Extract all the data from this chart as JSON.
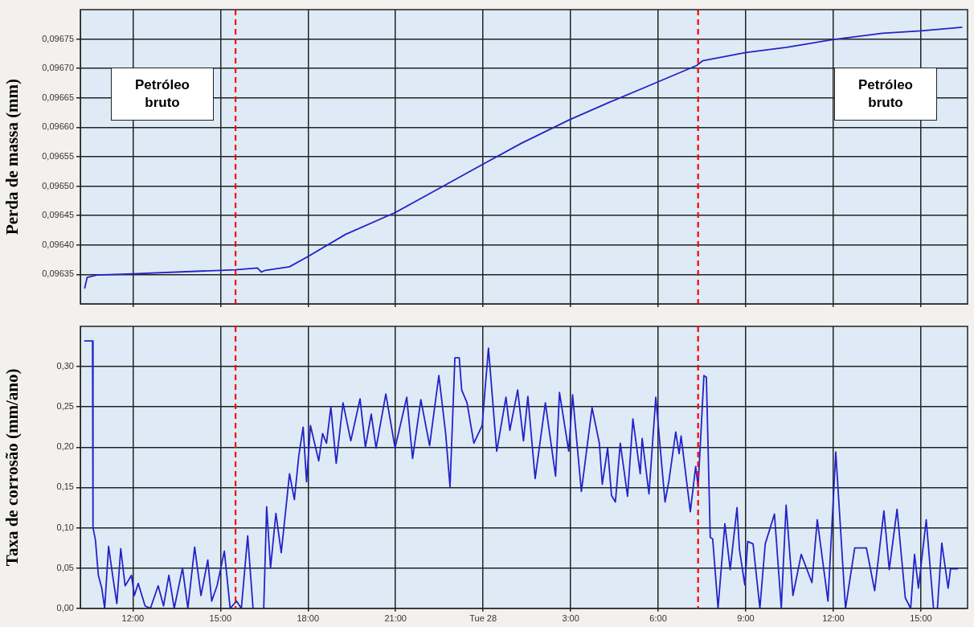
{
  "chart_data": [
    {
      "type": "line",
      "ylabel": "Perda de massa (mm)",
      "series": [
        {
          "color": "#2323c8",
          "x": [
            "--02-27T10:21",
            "--02-27T10:26",
            "--02-27T10:46",
            "--02-27T12:00",
            "--02-27T15:00",
            "--02-27T15:31",
            "--02-27T16:16",
            "--02-27T16:24",
            "--02-27T16:32",
            "--02-27T17:22",
            "--02-27T18:01",
            "--02-27T19:17",
            "--02-27T20:59",
            "--02-27T22:18",
            "--02-27T23:59",
            "--02-28T01:19",
            "--02-28T02:58",
            "--02-28T04:21",
            "--02-28T05:56",
            "--02-28T07:19",
            "--02-28T07:31",
            "--02-28T09:00",
            "--02-28T10:24",
            "--02-28T11:58",
            "--02-28T13:41",
            "--02-28T15:00",
            "--02-28T16:12",
            "--02-28T16:24"
          ],
          "values": [
            0.096327,
            0.096345,
            0.096349,
            0.096351,
            0.096357,
            0.096358,
            0.096361,
            0.096354,
            0.096357,
            0.096363,
            0.096381,
            0.096418,
            0.096455,
            0.096491,
            0.096537,
            0.096573,
            0.096613,
            0.096643,
            0.096676,
            0.096705,
            0.096713,
            0.096727,
            0.096736,
            0.096749,
            0.09676,
            0.096764,
            0.096769,
            0.09677
          ]
        }
      ],
      "xlim": [
        "--02-27T10:12",
        "--02-28T16:36"
      ],
      "xticks": [
        {
          "value": "--02-27T12:00",
          "label": null
        },
        {
          "value": "--02-27T15:00",
          "label": null
        },
        {
          "value": "--02-27T18:00",
          "label": null
        },
        {
          "value": "--02-27T21:00",
          "label": null
        },
        {
          "value": "--02-28T00:00",
          "label": null
        },
        {
          "value": "--02-28T03:00",
          "label": null
        },
        {
          "value": "--02-28T06:00",
          "label": null
        },
        {
          "value": "--02-28T09:00",
          "label": null
        },
        {
          "value": "--02-28T12:00",
          "label": null
        },
        {
          "value": "--02-28T15:00",
          "label": null
        }
      ],
      "ylim": [
        0.0963,
        0.0968
      ],
      "yticks": [
        {
          "value": 0.09635,
          "label": "0,09635"
        },
        {
          "value": 0.0964,
          "label": "0,09640"
        },
        {
          "value": 0.09645,
          "label": "0,09645"
        },
        {
          "value": 0.0965,
          "label": "0,09650"
        },
        {
          "value": 0.09655,
          "label": "0,09655"
        },
        {
          "value": 0.0966,
          "label": "0,09660"
        },
        {
          "value": 0.09665,
          "label": "0,09665"
        },
        {
          "value": 0.0967,
          "label": "0,09670"
        },
        {
          "value": 0.09675,
          "label": "0,09675"
        }
      ],
      "tick_labels": "y",
      "grid": true,
      "line_style": "solid",
      "ref_lines": [
        {
          "axis": "x",
          "value": "--02-27T15:31",
          "color": "#ff0000",
          "line_style": "dashed"
        },
        {
          "axis": "x",
          "value": "--02-28T07:22",
          "color": "#ff0000",
          "line_style": "dashed"
        }
      ],
      "annotations": [
        "Petróleo bruto",
        "Petróleo bruto"
      ]
    },
    {
      "type": "line",
      "ylabel": "Taxa de corrosão (mm/ano)",
      "series": [
        {
          "color": "#2323c8",
          "x": [
            "--02-27T10:21",
            "--02-27T10:37",
            "--02-27T10:38",
            "--02-27T10:43",
            "--02-27T10:49",
            "--02-27T10:56",
            "--02-27T11:02",
            "--02-27T11:10",
            "--02-27T11:19",
            "--02-27T11:27",
            "--02-27T11:35",
            "--02-27T11:44",
            "--02-27T11:57",
            "--02-27T12:03",
            "--02-27T12:11",
            "--02-27T12:25",
            "--02-27T12:36",
            "--02-27T12:52",
            "--02-27T13:03",
            "--02-27T13:14",
            "--02-27T13:25",
            "--02-27T13:42",
            "--02-27T13:53",
            "--02-27T14:07",
            "--02-27T14:20",
            "--02-27T14:34",
            "--02-27T14:42",
            "--02-27T14:53",
            "--02-27T15:08",
            "--02-27T15:20",
            "--02-27T15:33",
            "--02-27T15:43",
            "--02-27T15:56",
            "--02-27T16:07",
            "--02-27T16:29",
            "--02-27T16:35",
            "--02-27T16:43",
            "--02-27T16:54",
            "--02-27T17:05",
            "--02-27T17:22",
            "--02-27T17:32",
            "--02-27T17:41",
            "--02-27T17:50",
            "--02-27T17:57",
            "--02-27T18:05",
            "--02-27T18:22",
            "--02-27T18:30",
            "--02-27T18:38",
            "--02-27T18:47",
            "--02-27T18:58",
            "--02-27T19:12",
            "--02-27T19:28",
            "--02-27T19:47",
            "--02-27T19:58",
            "--02-27T20:10",
            "--02-27T20:20",
            "--02-27T20:40",
            "--02-27T20:59",
            "--02-27T21:23",
            "--02-27T21:35",
            "--02-27T21:52",
            "--02-27T22:10",
            "--02-27T22:29",
            "--02-27T22:43",
            "--02-27T22:52",
            "--02-27T23:02",
            "--02-27T23:11",
            "--02-27T23:16",
            "--02-27T23:27",
            "--02-27T23:41",
            "--02-27T23:58",
            "--02-28T00:11",
            "--02-28T00:28",
            "--02-28T00:47",
            "--02-28T00:55",
            "--02-28T01:11",
            "--02-28T01:23",
            "--02-28T01:32",
            "--02-28T01:47",
            "--02-28T02:08",
            "--02-28T02:29",
            "--02-28T02:37",
            "--02-28T02:56",
            "--02-28T03:04",
            "--02-28T03:22",
            "--02-28T03:44",
            "--02-28T03:59",
            "--02-28T04:05",
            "--02-28T04:16",
            "--02-28T04:24",
            "--02-28T04:32",
            "--02-28T04:42",
            "--02-28T04:57",
            "--02-28T05:08",
            "--02-28T05:23",
            "--02-28T05:27",
            "--02-28T05:41",
            "--02-28T05:55",
            "--02-28T06:14",
            "--02-28T06:22",
            "--02-28T06:36",
            "--02-28T06:43",
            "--02-28T06:47",
            "--02-28T07:06",
            "--02-28T07:17",
            "--02-28T07:22",
            "--02-28T07:34",
            "--02-28T07:39",
            "--02-28T07:47",
            "--02-28T07:52",
            "--02-28T08:03",
            "--02-28T08:17",
            "--02-28T08:28",
            "--02-28T08:42",
            "--02-28T08:47",
            "--02-28T08:58",
            "--02-28T09:04",
            "--02-28T09:15",
            "--02-28T09:29",
            "--02-28T09:40",
            "--02-28T09:59",
            "--02-28T10:13",
            "--02-28T10:23",
            "--02-28T10:37",
            "--02-28T10:54",
            "--02-28T11:16",
            "--02-28T11:27",
            "--02-28T11:49",
            "--02-28T12:05",
            "--02-28T12:25",
            "--02-28T12:44",
            "--02-28T13:08",
            "--02-28T13:25",
            "--02-28T13:44",
            "--02-28T13:55",
            "--02-28T14:11",
            "--02-28T14:28",
            "--02-28T14:39",
            "--02-28T14:47",
            "--02-28T14:55",
            "--02-28T15:11",
            "--02-28T15:26",
            "--02-28T15:34",
            "--02-28T15:43",
            "--02-28T15:56",
            "--02-28T16:01",
            "--02-28T16:15"
          ],
          "values": [
            0.332,
            0.332,
            0.1,
            0.085,
            0.041,
            0.025,
            0,
            0.077,
            0.038,
            0.006,
            0.074,
            0.028,
            0.041,
            0.016,
            0.031,
            0.003,
            0,
            0.028,
            0.003,
            0.041,
            0,
            0.05,
            0,
            0.076,
            0.016,
            0.06,
            0.009,
            0.028,
            0.071,
            0,
            0.009,
            0,
            0.09,
            0,
            0,
            0.126,
            0.05,
            0.118,
            0.069,
            0.167,
            0.135,
            0.189,
            0.225,
            0.157,
            0.227,
            0.183,
            0.217,
            0.205,
            0.25,
            0.18,
            0.255,
            0.208,
            0.26,
            0.2,
            0.241,
            0.199,
            0.266,
            0.199,
            0.262,
            0.186,
            0.259,
            0.202,
            0.289,
            0.217,
            0.151,
            0.311,
            0.311,
            0.271,
            0.255,
            0.205,
            0.227,
            0.323,
            0.195,
            0.262,
            0.221,
            0.271,
            0.208,
            0.263,
            0.161,
            0.255,
            0.164,
            0.268,
            0.195,
            0.265,
            0.145,
            0.249,
            0.205,
            0.154,
            0.199,
            0.14,
            0.132,
            0.205,
            0.139,
            0.235,
            0.167,
            0.211,
            0.142,
            0.262,
            0.132,
            0.158,
            0.219,
            0.192,
            0.214,
            0.12,
            0.176,
            0.151,
            0.289,
            0.287,
            0.088,
            0.086,
            0,
            0.105,
            0.048,
            0.125,
            0.073,
            0.029,
            0.083,
            0.08,
            0,
            0.08,
            0.117,
            0,
            0.128,
            0.016,
            0.067,
            0.032,
            0.11,
            0.009,
            0.194,
            0,
            0.075,
            0.075,
            0.022,
            0.121,
            0.048,
            0.123,
            0.013,
            0,
            0.067,
            0.025,
            0.11,
            0,
            0,
            0.081,
            0.025,
            0.049,
            0.049
          ]
        }
      ],
      "xlim": [
        "--02-27T10:12",
        "--02-28T16:36"
      ],
      "xticks": [
        {
          "value": "--02-27T12:00",
          "label": "12:00"
        },
        {
          "value": "--02-27T15:00",
          "label": "15:00"
        },
        {
          "value": "--02-27T18:00",
          "label": "18:00"
        },
        {
          "value": "--02-27T21:00",
          "label": "21:00"
        },
        {
          "value": "--02-28T00:00",
          "label": "Tue 28"
        },
        {
          "value": "--02-28T03:00",
          "label": "3:00"
        },
        {
          "value": "--02-28T06:00",
          "label": "6:00"
        },
        {
          "value": "--02-28T09:00",
          "label": "9:00"
        },
        {
          "value": "--02-28T12:00",
          "label": "12:00"
        },
        {
          "value": "--02-28T15:00",
          "label": "15:00"
        }
      ],
      "ylim": [
        0,
        0.35
      ],
      "yticks": [
        {
          "value": 0,
          "label": "0,00"
        },
        {
          "value": 0.05,
          "label": "0,05"
        },
        {
          "value": 0.1,
          "label": "0,10"
        },
        {
          "value": 0.15,
          "label": "0,15"
        },
        {
          "value": 0.2,
          "label": "0,20"
        },
        {
          "value": 0.25,
          "label": "0,25"
        },
        {
          "value": 0.3,
          "label": "0,30"
        }
      ],
      "grid": true,
      "line_style": "solid",
      "ref_lines": [
        {
          "axis": "x",
          "value": "--02-27T15:31",
          "color": "#ff0000",
          "line_style": "dashed"
        },
        {
          "axis": "x",
          "value": "--02-28T07:22",
          "color": "#ff0000",
          "line_style": "dashed"
        }
      ]
    }
  ]
}
